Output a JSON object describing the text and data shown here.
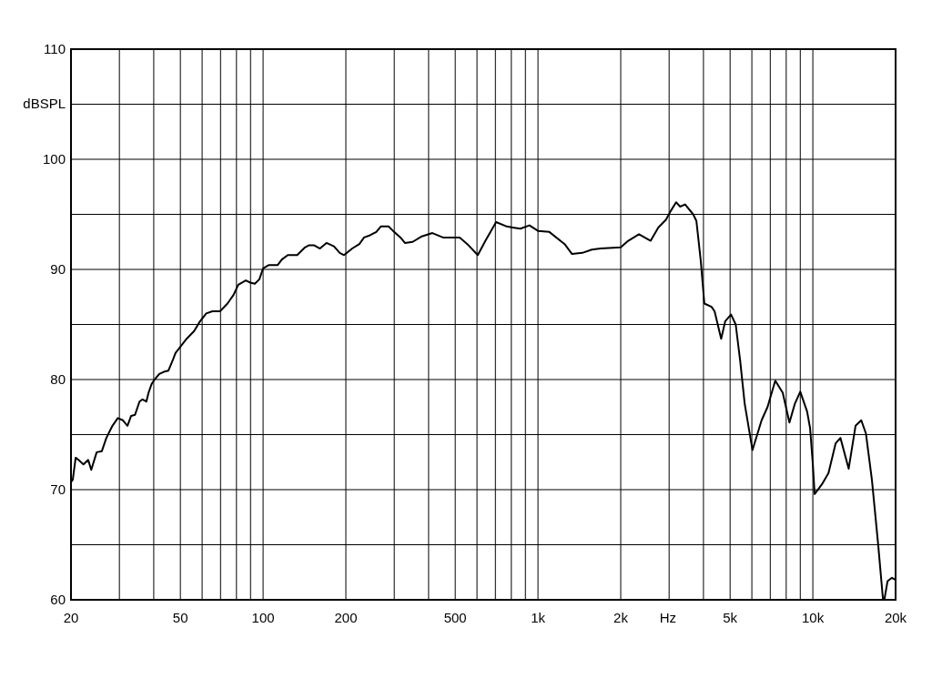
{
  "chart_data": {
    "type": "line",
    "xlabel": "Hz",
    "ylabel": "dBSPL",
    "log": "x",
    "grid": true,
    "color": "#000000",
    "xlim": [
      20,
      20000
    ],
    "ylim": [
      60,
      110
    ],
    "xticks": [
      20,
      {
        "value": 30,
        "label": null
      },
      {
        "value": 40,
        "label": null
      },
      50,
      {
        "value": 60,
        "label": null
      },
      {
        "value": 70,
        "label": null
      },
      {
        "value": 80,
        "label": null
      },
      {
        "value": 90,
        "label": null
      },
      100,
      200,
      {
        "value": 300,
        "label": null
      },
      {
        "value": 400,
        "label": null
      },
      500,
      {
        "value": 600,
        "label": null
      },
      {
        "value": 700,
        "label": null
      },
      {
        "value": 800,
        "label": null
      },
      {
        "value": 900,
        "label": null
      },
      {
        "value": 1000,
        "label": "1k"
      },
      {
        "value": 2000,
        "label": "2k"
      },
      {
        "value": 3000,
        "label": null
      },
      {
        "value": 4000,
        "label": null
      },
      {
        "value": 5000,
        "label": "5k"
      },
      {
        "value": 6000,
        "label": null
      },
      {
        "value": 7000,
        "label": null
      },
      {
        "value": 8000,
        "label": null
      },
      {
        "value": 9000,
        "label": null
      },
      {
        "value": 10000,
        "label": "10k"
      },
      {
        "value": 20000,
        "label": "20k"
      }
    ],
    "yticks": [
      60,
      {
        "value": 65,
        "label": null
      },
      70,
      {
        "value": 75,
        "label": null
      },
      80,
      {
        "value": 85,
        "label": null
      },
      90,
      {
        "value": 95,
        "label": null
      },
      100,
      {
        "value": 105,
        "label": null
      },
      110
    ],
    "x": [
      20,
      20.3,
      20.8,
      21.3,
      22.2,
      23.1,
      23.7,
      24.8,
      25.9,
      26.9,
      28.3,
      29.6,
      30.9,
      32.1,
      33.1,
      34.2,
      35.5,
      36.4,
      37.6,
      38.3,
      39.3,
      40.3,
      41.9,
      43.5,
      45.2,
      47,
      48,
      52.7,
      56.1,
      59,
      62.1,
      65.4,
      69.7,
      74.2,
      78.1,
      81.2,
      86.5,
      89.8,
      93.3,
      96.9,
      100,
      105,
      113,
      117,
      123,
      133,
      142,
      147,
      153,
      161,
      170,
      181,
      190,
      197,
      211,
      224,
      233,
      245,
      258,
      268,
      286,
      297,
      316,
      328,
      350,
      378,
      413,
      451,
      519,
      553,
      604,
      644,
      704,
      770,
      809,
      863,
      931,
      1000,
      1100,
      1250,
      1330,
      1450,
      1570,
      1690,
      2000,
      2130,
      2330,
      2570,
      2740,
      2920,
      3040,
      3180,
      3290,
      3430,
      3670,
      3770,
      3910,
      4030,
      4280,
      4390,
      4640,
      4800,
      5040,
      5240,
      5440,
      5650,
      6030,
      6510,
      6840,
      7300,
      7770,
      8220,
      8600,
      9000,
      9530,
      9770,
      10000,
      10150,
      10800,
      11400,
      12100,
      12600,
      13500,
      14300,
      15000,
      15600,
      16400,
      17300,
      18000,
      18200,
      18700,
      19400,
      20000
    ],
    "values": [
      70.7,
      70.9,
      72.9,
      72.7,
      72.3,
      72.7,
      71.8,
      73.4,
      73.5,
      74.7,
      75.8,
      76.5,
      76.3,
      75.8,
      76.7,
      76.8,
      78,
      78.2,
      78,
      78.8,
      79.6,
      80,
      80.5,
      80.7,
      80.8,
      81.8,
      82.4,
      83.7,
      84.4,
      85.3,
      86,
      86.2,
      86.2,
      86.9,
      87.7,
      88.6,
      89,
      88.8,
      88.7,
      89.1,
      90.1,
      90.4,
      90.4,
      90.9,
      91.3,
      91.3,
      92,
      92.2,
      92.2,
      91.9,
      92.4,
      92.1,
      91.5,
      91.3,
      91.9,
      92.3,
      92.9,
      93.1,
      93.4,
      93.9,
      93.9,
      93.5,
      92.9,
      92.4,
      92.5,
      93,
      93.3,
      92.9,
      92.9,
      92.3,
      91.3,
      92.6,
      94.3,
      93.9,
      93.8,
      93.7,
      94,
      93.5,
      93.4,
      92.3,
      91.4,
      91.5,
      91.8,
      91.9,
      92,
      92.6,
      93.2,
      92.6,
      93.8,
      94.5,
      95.3,
      96.1,
      95.7,
      95.9,
      95,
      94.4,
      90.8,
      86.9,
      86.6,
      86.2,
      83.7,
      85.3,
      85.9,
      85,
      81.7,
      77.8,
      73.6,
      76.3,
      77.5,
      79.9,
      78.8,
      76.1,
      77.8,
      78.9,
      77.1,
      75.6,
      72.3,
      69.6,
      70.5,
      71.5,
      74.2,
      74.7,
      71.9,
      75.8,
      76.3,
      75.1,
      70.9,
      64.9,
      60,
      60,
      61.7,
      62,
      61.8
    ]
  }
}
